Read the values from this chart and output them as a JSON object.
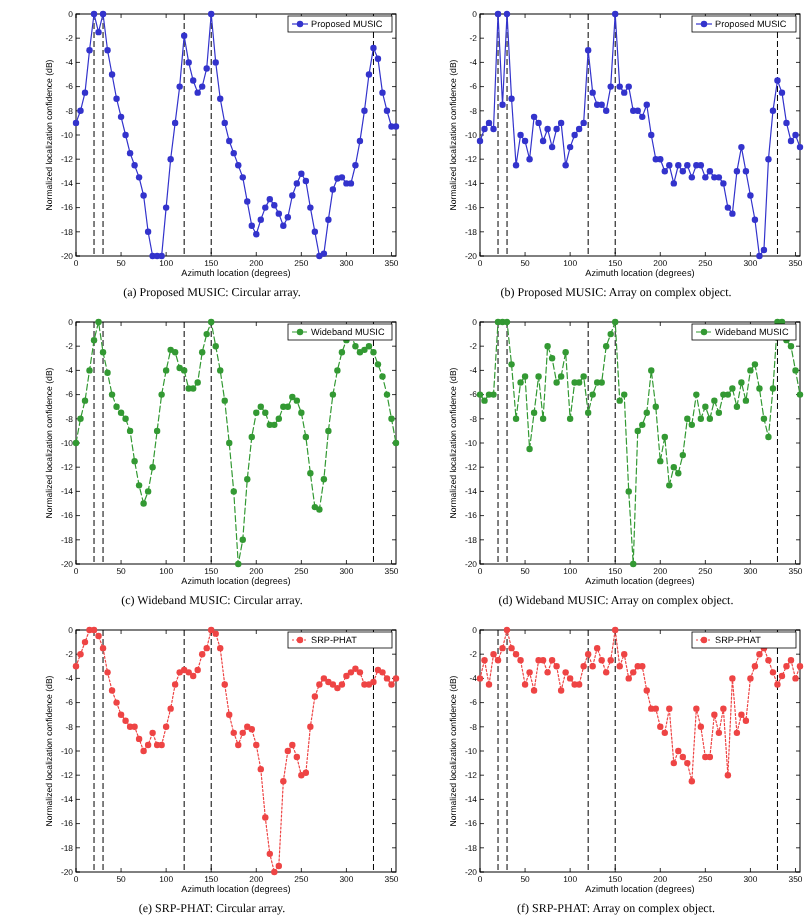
{
  "chart_data": [
    {
      "type": "line",
      "title": "(a) Proposed MUSIC: Circular array.",
      "xlabel": "Azimuth location (degrees)",
      "ylabel": "Normalized localization confidence (dB)",
      "legend": "top right",
      "marker": "circle",
      "line_style": "solid",
      "xlim": [
        0,
        355
      ],
      "xticks": [
        0,
        50,
        100,
        150,
        200,
        250,
        300,
        350
      ],
      "ylim": [
        -20,
        0
      ],
      "yticks": [
        0,
        -2,
        -4,
        -6,
        -8,
        -10,
        -12,
        -14,
        -16,
        -18,
        -20
      ],
      "ref_lines": [
        {
          "axis": "x",
          "value": 20,
          "line_style": "dashed",
          "color": "#000000"
        },
        {
          "axis": "x",
          "value": 30,
          "line_style": "dashed",
          "color": "#000000"
        },
        {
          "axis": "x",
          "value": 120,
          "line_style": "dashed",
          "color": "#000000"
        },
        {
          "axis": "x",
          "value": 150,
          "line_style": "dashed",
          "color": "#000000"
        },
        {
          "axis": "x",
          "value": 330,
          "line_style": "dashed",
          "color": "#000000"
        }
      ],
      "x": [
        0,
        5,
        10,
        15,
        20,
        25,
        30,
        35,
        40,
        45,
        50,
        55,
        60,
        65,
        70,
        75,
        80,
        85,
        90,
        95,
        100,
        105,
        110,
        115,
        120,
        125,
        130,
        135,
        140,
        145,
        150,
        155,
        160,
        165,
        170,
        175,
        180,
        185,
        190,
        195,
        200,
        205,
        210,
        215,
        220,
        225,
        230,
        235,
        240,
        245,
        250,
        255,
        260,
        265,
        270,
        275,
        280,
        285,
        290,
        295,
        300,
        305,
        310,
        315,
        320,
        325,
        330,
        335,
        340,
        345,
        350,
        355
      ],
      "series": [
        {
          "name": "Proposed MUSIC",
          "color": "#3333cc",
          "values": [
            -9,
            -8,
            -6.5,
            -3,
            0,
            -1.5,
            0,
            -3,
            -5,
            -7,
            -8.5,
            -10,
            -11.5,
            -12.5,
            -13.5,
            -15,
            -18,
            -20,
            -20,
            -20,
            -16,
            -12,
            -9,
            -6,
            -1.8,
            -4,
            -5.5,
            -6.5,
            -6,
            -4.5,
            0,
            -4,
            -7,
            -9,
            -10.5,
            -11.5,
            -12.5,
            -13.5,
            -15.5,
            -17.5,
            -18.2,
            -17,
            -16,
            -15.3,
            -15.8,
            -16.5,
            -17.5,
            -16.8,
            -15,
            -14,
            -13.2,
            -13.8,
            -16,
            -18,
            -20,
            -19.8,
            -17,
            -14.5,
            -13.6,
            -13.5,
            -14,
            -14,
            -12.5,
            -10.5,
            -8,
            -5,
            -2.8,
            -3.7,
            -6.5,
            -8,
            -9.3,
            -9.3
          ]
        }
      ]
    },
    {
      "type": "line",
      "title": "(b) Proposed MUSIC: Array on complex object.",
      "xlabel": "Azimuth location (degrees)",
      "ylabel": "Normalized localization confidence (dB)",
      "legend": "top right",
      "marker": "circle",
      "line_style": "solid",
      "xlim": [
        0,
        355
      ],
      "xticks": [
        0,
        50,
        100,
        150,
        200,
        250,
        300,
        350
      ],
      "ylim": [
        -20,
        0
      ],
      "yticks": [
        0,
        -2,
        -4,
        -6,
        -8,
        -10,
        -12,
        -14,
        -16,
        -18,
        -20
      ],
      "ref_lines": [
        {
          "axis": "x",
          "value": 20,
          "line_style": "dashed",
          "color": "#000000"
        },
        {
          "axis": "x",
          "value": 30,
          "line_style": "dashed",
          "color": "#000000"
        },
        {
          "axis": "x",
          "value": 120,
          "line_style": "dashed",
          "color": "#000000"
        },
        {
          "axis": "x",
          "value": 150,
          "line_style": "dashed",
          "color": "#000000"
        },
        {
          "axis": "x",
          "value": 330,
          "line_style": "dashed",
          "color": "#000000"
        }
      ],
      "x": [
        0,
        5,
        10,
        15,
        20,
        25,
        30,
        35,
        40,
        45,
        50,
        55,
        60,
        65,
        70,
        75,
        80,
        85,
        90,
        95,
        100,
        105,
        110,
        115,
        120,
        125,
        130,
        135,
        140,
        145,
        150,
        155,
        160,
        165,
        170,
        175,
        180,
        185,
        190,
        195,
        200,
        205,
        210,
        215,
        220,
        225,
        230,
        235,
        240,
        245,
        250,
        255,
        260,
        265,
        270,
        275,
        280,
        285,
        290,
        295,
        300,
        305,
        310,
        315,
        320,
        325,
        330,
        335,
        340,
        345,
        350,
        355
      ],
      "series": [
        {
          "name": "Proposed MUSIC",
          "color": "#3333cc",
          "values": [
            -10.5,
            -9.5,
            -9,
            -9.5,
            0,
            -7.5,
            0,
            -7,
            -12.5,
            -10,
            -10.5,
            -12,
            -8.5,
            -9,
            -10.5,
            -9.5,
            -11,
            -9.5,
            -9,
            -12.5,
            -11,
            -10,
            -9.5,
            -9,
            -3,
            -6.5,
            -7.5,
            -7.5,
            -8,
            -6,
            0,
            -6,
            -6.5,
            -6,
            -8,
            -8,
            -8.5,
            -7.5,
            -10,
            -12,
            -12,
            -13,
            -12.5,
            -14,
            -12.5,
            -13,
            -12.5,
            -13.5,
            -12.5,
            -12.5,
            -13.5,
            -13,
            -13.5,
            -13.5,
            -14,
            -16,
            -16.5,
            -13,
            -11,
            -13,
            -15,
            -17,
            -20,
            -19.5,
            -12,
            -8,
            -5.5,
            -6.5,
            -9,
            -10.5,
            -10,
            -11
          ]
        }
      ]
    },
    {
      "type": "line",
      "title": "(c) Wideband MUSIC: Circular array.",
      "xlabel": "Azimuth location (degrees)",
      "ylabel": "Normalized localization confidence (dB)",
      "legend": "top right",
      "marker": "circle",
      "line_style": "dashed",
      "xlim": [
        0,
        355
      ],
      "xticks": [
        0,
        50,
        100,
        150,
        200,
        250,
        300,
        350
      ],
      "ylim": [
        -20,
        0
      ],
      "yticks": [
        0,
        -2,
        -4,
        -6,
        -8,
        -10,
        -12,
        -14,
        -16,
        -18,
        -20
      ],
      "ref_lines": [
        {
          "axis": "x",
          "value": 20,
          "line_style": "dashed",
          "color": "#000000"
        },
        {
          "axis": "x",
          "value": 30,
          "line_style": "dashed",
          "color": "#000000"
        },
        {
          "axis": "x",
          "value": 120,
          "line_style": "dashed",
          "color": "#000000"
        },
        {
          "axis": "x",
          "value": 150,
          "line_style": "dashed",
          "color": "#000000"
        },
        {
          "axis": "x",
          "value": 330,
          "line_style": "dashed",
          "color": "#000000"
        }
      ],
      "x": [
        0,
        5,
        10,
        15,
        20,
        25,
        30,
        35,
        40,
        45,
        50,
        55,
        60,
        65,
        70,
        75,
        80,
        85,
        90,
        95,
        100,
        105,
        110,
        115,
        120,
        125,
        130,
        135,
        140,
        145,
        150,
        155,
        160,
        165,
        170,
        175,
        180,
        185,
        190,
        195,
        200,
        205,
        210,
        215,
        220,
        225,
        230,
        235,
        240,
        245,
        250,
        255,
        260,
        265,
        270,
        275,
        280,
        285,
        290,
        295,
        300,
        305,
        310,
        315,
        320,
        325,
        330,
        335,
        340,
        345,
        350,
        355
      ],
      "series": [
        {
          "name": "Wideband MUSIC",
          "color": "#339933",
          "values": [
            -10,
            -8,
            -6.5,
            -4,
            -1.5,
            0,
            -2.5,
            -4.2,
            -6,
            -7,
            -7.5,
            -8,
            -9,
            -11.5,
            -13.5,
            -15,
            -14,
            -12,
            -9,
            -6,
            -4,
            -2.3,
            -2.5,
            -3.8,
            -4,
            -5.5,
            -5.5,
            -5,
            -2.5,
            -1,
            0,
            -2,
            -4,
            -6.5,
            -10,
            -14,
            -20,
            -18,
            -13,
            -9.5,
            -7.5,
            -7,
            -7.5,
            -8.5,
            -8.5,
            -8,
            -7,
            -7,
            -6.2,
            -6.5,
            -7.5,
            -9.5,
            -12.5,
            -15.3,
            -15.5,
            -13,
            -9,
            -6,
            -4,
            -2.5,
            -1.5,
            -1,
            -2,
            -2.5,
            -2.3,
            -2,
            -2.5,
            -3.5,
            -4.5,
            -6,
            -8,
            -10
          ]
        }
      ]
    },
    {
      "type": "line",
      "title": "(d) Wideband MUSIC: Array on complex object.",
      "xlabel": "Azimuth location (degrees)",
      "ylabel": "Normalized localization confidence (dB)",
      "legend": "top right",
      "marker": "circle",
      "line_style": "dashed",
      "xlim": [
        0,
        355
      ],
      "xticks": [
        0,
        50,
        100,
        150,
        200,
        250,
        300,
        350
      ],
      "ylim": [
        -20,
        0
      ],
      "yticks": [
        0,
        -2,
        -4,
        -6,
        -8,
        -10,
        -12,
        -14,
        -16,
        -18,
        -20
      ],
      "ref_lines": [
        {
          "axis": "x",
          "value": 20,
          "line_style": "dashed",
          "color": "#000000"
        },
        {
          "axis": "x",
          "value": 30,
          "line_style": "dashed",
          "color": "#000000"
        },
        {
          "axis": "x",
          "value": 120,
          "line_style": "dashed",
          "color": "#000000"
        },
        {
          "axis": "x",
          "value": 150,
          "line_style": "dashed",
          "color": "#000000"
        },
        {
          "axis": "x",
          "value": 330,
          "line_style": "dashed",
          "color": "#000000"
        }
      ],
      "x": [
        0,
        5,
        10,
        15,
        20,
        25,
        30,
        35,
        40,
        45,
        50,
        55,
        60,
        65,
        70,
        75,
        80,
        85,
        90,
        95,
        100,
        105,
        110,
        115,
        120,
        125,
        130,
        135,
        140,
        145,
        150,
        155,
        160,
        165,
        170,
        175,
        180,
        185,
        190,
        195,
        200,
        205,
        210,
        215,
        220,
        225,
        230,
        235,
        240,
        245,
        250,
        255,
        260,
        265,
        270,
        275,
        280,
        285,
        290,
        295,
        300,
        305,
        310,
        315,
        320,
        325,
        330,
        335,
        340,
        345,
        350,
        355
      ],
      "series": [
        {
          "name": "Wideband MUSIC",
          "color": "#339933",
          "values": [
            -6,
            -6.5,
            -6,
            -6,
            0,
            0,
            0,
            -3.5,
            -8,
            -5,
            -4.5,
            -10.5,
            -7.5,
            -4.5,
            -8,
            -2,
            -3,
            -5,
            -4.5,
            -2.5,
            -8,
            -5,
            -5,
            -4.5,
            -7.5,
            -6,
            -5,
            -5,
            -2,
            -1,
            0,
            -6.5,
            -6,
            -14,
            -20,
            -9,
            -8.5,
            -7.5,
            -4,
            -7,
            -11.5,
            -9.5,
            -13.5,
            -12,
            -12.5,
            -11,
            -8,
            -8.5,
            -6,
            -8,
            -7,
            -8,
            -6.5,
            -7.5,
            -6,
            -6,
            -5.5,
            -7,
            -5,
            -6.5,
            -4,
            -3.5,
            -5.5,
            -8,
            -9.5,
            -5.5,
            0,
            0,
            -1.5,
            -2,
            -4,
            -6
          ]
        }
      ]
    },
    {
      "type": "line",
      "title": "(e) SRP-PHAT: Circular array.",
      "xlabel": "Azimuth location (degrees)",
      "ylabel": "Normalized localization confidence (dB)",
      "legend": "top right",
      "marker": "circle",
      "line_style": "dotted",
      "xlim": [
        0,
        355
      ],
      "xticks": [
        0,
        50,
        100,
        150,
        200,
        250,
        300,
        350
      ],
      "ylim": [
        -20,
        0
      ],
      "yticks": [
        0,
        -2,
        -4,
        -6,
        -8,
        -10,
        -12,
        -14,
        -16,
        -18,
        -20
      ],
      "ref_lines": [
        {
          "axis": "x",
          "value": 20,
          "line_style": "dashed",
          "color": "#000000"
        },
        {
          "axis": "x",
          "value": 30,
          "line_style": "dashed",
          "color": "#000000"
        },
        {
          "axis": "x",
          "value": 120,
          "line_style": "dashed",
          "color": "#000000"
        },
        {
          "axis": "x",
          "value": 150,
          "line_style": "dashed",
          "color": "#000000"
        },
        {
          "axis": "x",
          "value": 330,
          "line_style": "dashed",
          "color": "#000000"
        }
      ],
      "x": [
        0,
        5,
        10,
        15,
        20,
        25,
        30,
        35,
        40,
        45,
        50,
        55,
        60,
        65,
        70,
        75,
        80,
        85,
        90,
        95,
        100,
        105,
        110,
        115,
        120,
        125,
        130,
        135,
        140,
        145,
        150,
        155,
        160,
        165,
        170,
        175,
        180,
        185,
        190,
        195,
        200,
        205,
        210,
        215,
        220,
        225,
        230,
        235,
        240,
        245,
        250,
        255,
        260,
        265,
        270,
        275,
        280,
        285,
        290,
        295,
        300,
        305,
        310,
        315,
        320,
        325,
        330,
        335,
        340,
        345,
        350,
        355
      ],
      "series": [
        {
          "name": "SRP-PHAT",
          "color": "#ee4444",
          "values": [
            -3,
            -2,
            -1,
            0,
            0,
            -0.5,
            -1.5,
            -3.5,
            -5,
            -6,
            -7,
            -7.5,
            -8,
            -8,
            -9,
            -10,
            -9.5,
            -8.5,
            -9.5,
            -9.5,
            -8,
            -6.5,
            -4.5,
            -3.5,
            -3.3,
            -3.5,
            -3.8,
            -3.3,
            -2,
            -1.5,
            0,
            -0.3,
            -1.5,
            -4.5,
            -7,
            -8.5,
            -9.5,
            -8.5,
            -8,
            -8.2,
            -9.5,
            -11.5,
            -15.5,
            -18.5,
            -20,
            -19.5,
            -12.5,
            -10,
            -9.5,
            -10.5,
            -12,
            -11.8,
            -8,
            -5.5,
            -4.5,
            -4,
            -4.3,
            -4.5,
            -4.8,
            -4.5,
            -3.8,
            -3.5,
            -3.2,
            -3.5,
            -4.5,
            -4.5,
            -4.3,
            -3.3,
            -3.5,
            -4,
            -4.5,
            -4
          ]
        }
      ]
    },
    {
      "type": "line",
      "title": "(f) SRP-PHAT: Array on complex object.",
      "xlabel": "Azimuth location (degrees)",
      "ylabel": "Normalized localization confidence (dB)",
      "legend": "top right",
      "marker": "circle",
      "line_style": "dotted",
      "xlim": [
        0,
        355
      ],
      "xticks": [
        0,
        50,
        100,
        150,
        200,
        250,
        300,
        350
      ],
      "ylim": [
        -20,
        0
      ],
      "yticks": [
        0,
        -2,
        -4,
        -6,
        -8,
        -10,
        -12,
        -14,
        -16,
        -18,
        -20
      ],
      "ref_lines": [
        {
          "axis": "x",
          "value": 20,
          "line_style": "dashed",
          "color": "#000000"
        },
        {
          "axis": "x",
          "value": 30,
          "line_style": "dashed",
          "color": "#000000"
        },
        {
          "axis": "x",
          "value": 120,
          "line_style": "dashed",
          "color": "#000000"
        },
        {
          "axis": "x",
          "value": 150,
          "line_style": "dashed",
          "color": "#000000"
        },
        {
          "axis": "x",
          "value": 330,
          "line_style": "dashed",
          "color": "#000000"
        }
      ],
      "x": [
        0,
        5,
        10,
        15,
        20,
        25,
        30,
        35,
        40,
        45,
        50,
        55,
        60,
        65,
        70,
        75,
        80,
        85,
        90,
        95,
        100,
        105,
        110,
        115,
        120,
        125,
        130,
        135,
        140,
        145,
        150,
        155,
        160,
        165,
        170,
        175,
        180,
        185,
        190,
        195,
        200,
        205,
        210,
        215,
        220,
        225,
        230,
        235,
        240,
        245,
        250,
        255,
        260,
        265,
        270,
        275,
        280,
        285,
        290,
        295,
        300,
        305,
        310,
        315,
        320,
        325,
        330,
        335,
        340,
        345,
        350,
        355
      ],
      "series": [
        {
          "name": "SRP-PHAT",
          "color": "#ee4444",
          "values": [
            -4,
            -2.5,
            -4.5,
            -2,
            -2.5,
            -1.5,
            0,
            -1.5,
            -2,
            -2.5,
            -4.5,
            -3.5,
            -5,
            -2.5,
            -2.5,
            -3.5,
            -2.5,
            -3,
            -5,
            -3.5,
            -4,
            -4.5,
            -4.5,
            -3,
            -2,
            -3,
            -1.5,
            -2.5,
            -3.5,
            -2.5,
            0,
            -3,
            -2,
            -4,
            -3.5,
            -3,
            -3,
            -5,
            -6.5,
            -6.5,
            -8,
            -8.5,
            -6.5,
            -11,
            -10,
            -10.5,
            -11,
            -12.5,
            -6.5,
            -8,
            -10.5,
            -10.5,
            -7,
            -8.5,
            -6.5,
            -12,
            -4,
            -8.5,
            -7,
            -7.5,
            -4,
            -3,
            -2,
            -1.5,
            -2.5,
            -3.5,
            -4.5,
            -3.8,
            -3,
            -2.5,
            -4,
            -3
          ]
        }
      ]
    }
  ]
}
